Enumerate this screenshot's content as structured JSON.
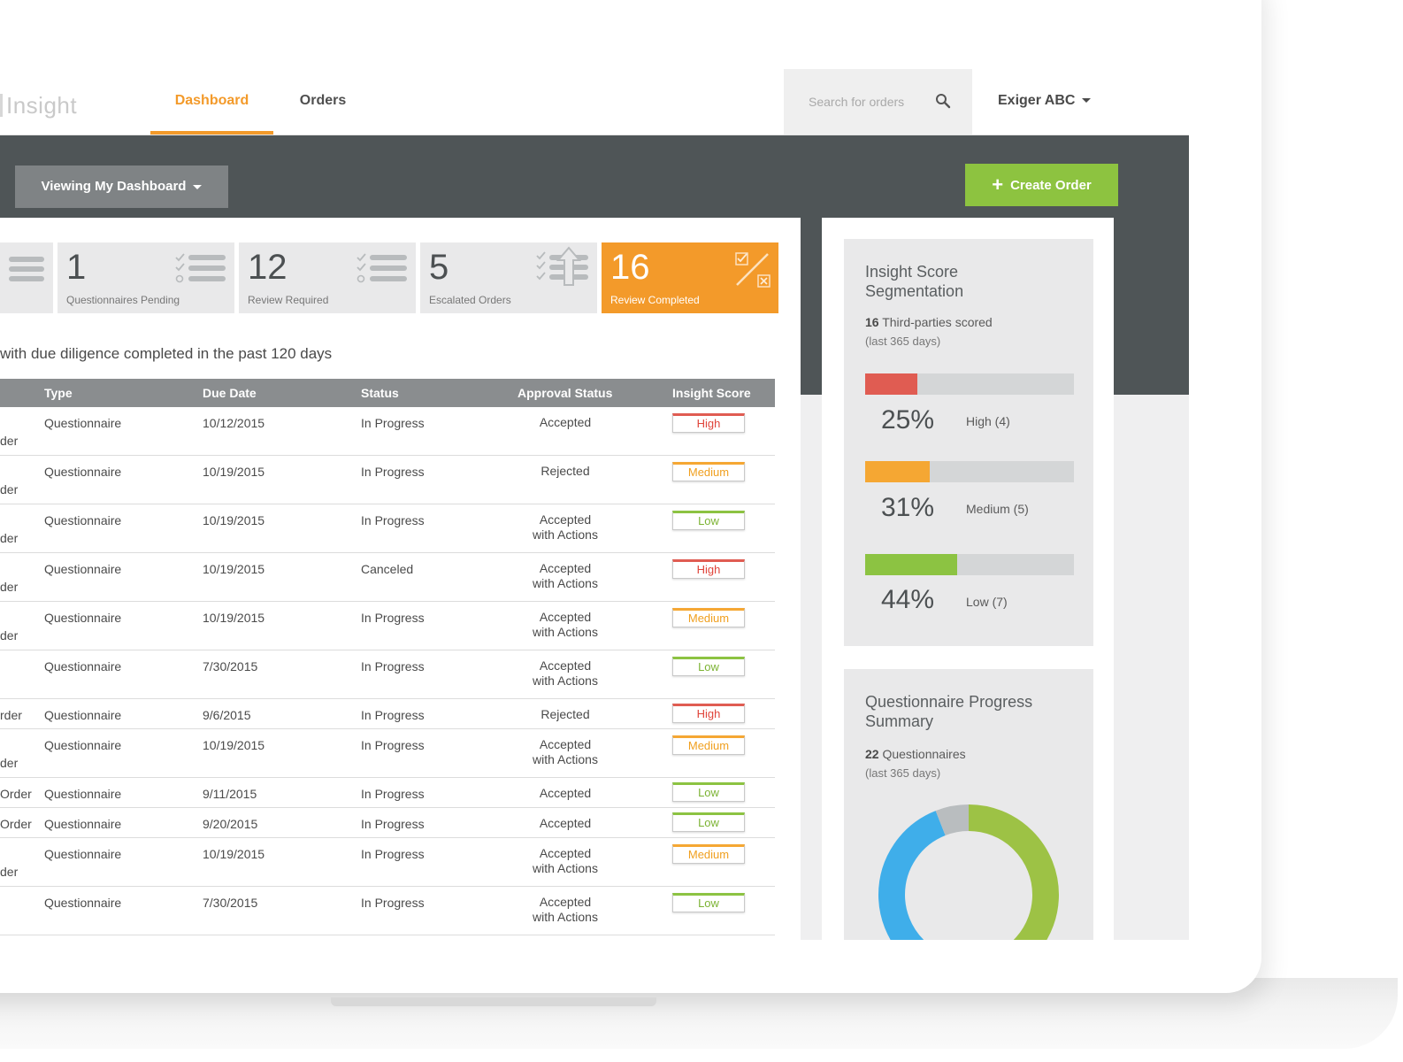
{
  "app": {
    "logo_text": "Insight"
  },
  "nav": {
    "tabs": [
      {
        "label": "Dashboard",
        "active": true
      },
      {
        "label": "Orders",
        "active": false
      }
    ]
  },
  "search": {
    "placeholder": "Search for orders",
    "icon": "search-icon"
  },
  "account": {
    "name": "Exiger ABC"
  },
  "toolbar": {
    "view_label": "Viewing My Dashboard",
    "create_label": "Create Order"
  },
  "stats": [
    {
      "value": "1",
      "label": "Questionnaires Pending",
      "icon": "checklist-icon"
    },
    {
      "value": "12",
      "label": "Review Required",
      "icon": "checklist-icon"
    },
    {
      "value": "5",
      "label": "Escalated Orders",
      "icon": "escalate-checklist-icon"
    },
    {
      "value": "16",
      "label": "Review Completed",
      "icon": "check-cross-icon",
      "highlight": true
    }
  ],
  "table": {
    "title": "with due diligence completed in the past 120 days",
    "headers": {
      "type": "Type",
      "due_date": "Due Date",
      "status": "Status",
      "approval": "Approval Status",
      "score": "Insight Score"
    },
    "rows": [
      {
        "prefix": "der",
        "type": "Questionnaire",
        "due_date": "10/12/2015",
        "status": "In Progress",
        "approval": "Accepted",
        "score": "High"
      },
      {
        "prefix": "der",
        "type": "Questionnaire",
        "due_date": "10/19/2015",
        "status": "In Progress",
        "approval": "Rejected",
        "score": "Medium"
      },
      {
        "prefix": "der",
        "type": "Questionnaire",
        "due_date": "10/19/2015",
        "status": "In Progress",
        "approval": "Accepted\nwith Actions",
        "score": "Low"
      },
      {
        "prefix": "der",
        "type": "Questionnaire",
        "due_date": "10/19/2015",
        "status": "Canceled",
        "approval": "Accepted\nwith Actions",
        "score": "High"
      },
      {
        "prefix": "der",
        "type": "Questionnaire",
        "due_date": "10/19/2015",
        "status": "In Progress",
        "approval": "Accepted\nwith Actions",
        "score": "Medium"
      },
      {
        "prefix": "",
        "type": "Questionnaire",
        "due_date": "7/30/2015",
        "status": "In Progress",
        "approval": "Accepted\nwith Actions",
        "score": "Low"
      },
      {
        "prefix": "rder",
        "type": "Questionnaire",
        "due_date": "9/6/2015",
        "status": "In Progress",
        "approval": "Rejected",
        "score": "High",
        "single": true
      },
      {
        "prefix": "der",
        "type": "Questionnaire",
        "due_date": "10/19/2015",
        "status": "In Progress",
        "approval": "Accepted\nwith Actions",
        "score": "Medium"
      },
      {
        "prefix": "Order",
        "type": "Questionnaire",
        "due_date": "9/11/2015",
        "status": "In Progress",
        "approval": "Accepted",
        "score": "Low",
        "single": true
      },
      {
        "prefix": "Order",
        "type": "Questionnaire",
        "due_date": "9/20/2015",
        "status": "In Progress",
        "approval": "Accepted",
        "score": "Low",
        "single": true
      },
      {
        "prefix": "der",
        "type": "Questionnaire",
        "due_date": "10/19/2015",
        "status": "In Progress",
        "approval": "Accepted\nwith Actions",
        "score": "Medium"
      },
      {
        "prefix": "",
        "type": "Questionnaire",
        "due_date": "7/30/2015",
        "status": "In Progress",
        "approval": "Accepted\nwith Actions",
        "score": "Low"
      }
    ]
  },
  "segmentation": {
    "title": "Insight Score\nSegmentation",
    "count": "16",
    "count_label": "Third-parties scored",
    "period": "(last 365 days)",
    "segments": [
      {
        "percent_text": "25%",
        "label": "High (4)",
        "fraction": 0.25,
        "color": "#e05c52"
      },
      {
        "percent_text": "31%",
        "label": "Medium (5)",
        "fraction": 0.31,
        "color": "#f5a733"
      },
      {
        "percent_text": "44%",
        "label": "Low (7)",
        "fraction": 0.44,
        "color": "#8cc342"
      }
    ]
  },
  "questionnaire_summary": {
    "title": "Questionnaire Progress\nSummary",
    "count": "22",
    "count_label": "Questionnaires",
    "period": "(last 365 days)",
    "donut": [
      {
        "fraction": 0.48,
        "color": "#9dc245"
      },
      {
        "fraction": 0.46,
        "color": "#3faeea"
      },
      {
        "fraction": 0.06,
        "color": "#b9bdbf"
      }
    ]
  },
  "colors": {
    "accent": "#f39a2a",
    "brand_green": "#8dc340",
    "header_dark": "#4f5557"
  }
}
